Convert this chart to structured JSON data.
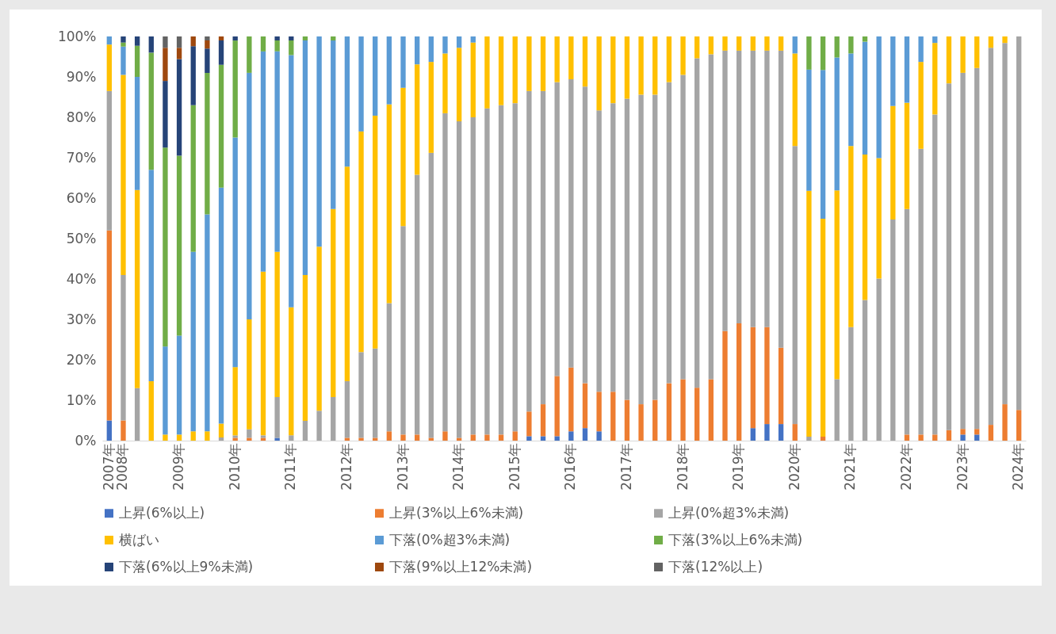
{
  "chart_data": {
    "type": "bar",
    "stacked": true,
    "legend": "bottom",
    "categories": [
      "2007年",
      "2008年",
      null,
      null,
      null,
      "2009年",
      null,
      null,
      null,
      "2010年",
      null,
      null,
      null,
      "2011年",
      null,
      null,
      null,
      "2012年",
      null,
      null,
      null,
      "2013年",
      null,
      null,
      null,
      "2014年",
      null,
      null,
      null,
      "2015年",
      null,
      null,
      null,
      "2016年",
      null,
      null,
      null,
      "2017年",
      null,
      null,
      null,
      "2018年",
      null,
      null,
      null,
      "2019年",
      null,
      null,
      null,
      "2020年",
      null,
      null,
      null,
      "2021年",
      null,
      null,
      null,
      "2022年",
      null,
      null,
      null,
      "2023年",
      null,
      null,
      null,
      "2024年"
    ],
    "ylim": [
      0,
      100
    ],
    "yticks": [
      {
        "value": 0,
        "label": "0%"
      },
      {
        "value": 10,
        "label": "10%"
      },
      {
        "value": 20,
        "label": "20%"
      },
      {
        "value": 30,
        "label": "30%"
      },
      {
        "value": 40,
        "label": "40%"
      },
      {
        "value": 50,
        "label": "50%"
      },
      {
        "value": 60,
        "label": "60%"
      },
      {
        "value": 70,
        "label": "70%"
      },
      {
        "value": 80,
        "label": "80%"
      },
      {
        "value": 90,
        "label": "90%"
      },
      {
        "value": 100,
        "label": "100%"
      }
    ],
    "series": [
      {
        "name": "上昇(6%以上)",
        "color": "#4472c4",
        "values": [
          5,
          null,
          null,
          null,
          null,
          null,
          null,
          null,
          null,
          null,
          null,
          null,
          0.7,
          null,
          null,
          null,
          null,
          null,
          null,
          null,
          null,
          null,
          null,
          null,
          null,
          null,
          null,
          null,
          null,
          null,
          1.1,
          1.1,
          1.1,
          2.3,
          3.1,
          2.3,
          null,
          null,
          null,
          null,
          null,
          null,
          null,
          null,
          null,
          null,
          3.1,
          4.1,
          4.1,
          null,
          null,
          null,
          null,
          null,
          null,
          null,
          null,
          null,
          null,
          null,
          null,
          1.5,
          1.5,
          null,
          null,
          null
        ]
      },
      {
        "name": "上昇(3%以上6%未満)",
        "color": "#ed7d31",
        "values": [
          47,
          5,
          null,
          null,
          null,
          null,
          null,
          null,
          null,
          0.7,
          0.7,
          0.7,
          null,
          null,
          null,
          null,
          null,
          0.7,
          0.7,
          0.7,
          2.3,
          1.5,
          1.5,
          0.7,
          2.3,
          0.7,
          1.5,
          1.5,
          1.5,
          2.3,
          6.1,
          7.9,
          14.9,
          15.8,
          11.1,
          9.8,
          12.1,
          10.1,
          9,
          10.1,
          14.2,
          15.2,
          13.1,
          15.2,
          27.1,
          29,
          25,
          24,
          18.9,
          4.1,
          null,
          1,
          null,
          null,
          null,
          null,
          null,
          1.5,
          1.5,
          1.5,
          2.6,
          1.4,
          1.4,
          3.9,
          9,
          7.6
        ]
      },
      {
        "name": "上昇(0%超3%未満)",
        "color": "#a5a5a5",
        "values": [
          34.5,
          36,
          13,
          null,
          null,
          null,
          null,
          null,
          0.8,
          0.6,
          2.1,
          0.6,
          10.1,
          1.3,
          4.9,
          7.4,
          10.8,
          14,
          21.2,
          22.1,
          31.7,
          51.6,
          64.3,
          70.5,
          78.7,
          78.3,
          78.5,
          80.7,
          81.5,
          81.2,
          79.3,
          77.5,
          72.7,
          71.3,
          73.4,
          69.6,
          71.4,
          74.5,
          76.6,
          75.5,
          74.5,
          75.3,
          81.5,
          80.4,
          69.4,
          67.5,
          68.4,
          68.4,
          73.5,
          68.8,
          1,
          null,
          15.2,
          28.1,
          34.8,
          40.1,
          54.7,
          55.8,
          70.7,
          79.2,
          85.8,
          88.1,
          89.3,
          93.3,
          89.4,
          92.4
        ]
      },
      {
        "name": "横ばい",
        "color": "#ffc000",
        "values": [
          11.5,
          49.5,
          49,
          14.7,
          1.5,
          1.5,
          2.3,
          2.3,
          3.4,
          16.9,
          27.2,
          40.5,
          35.9,
          31.7,
          36.1,
          40.6,
          46.5,
          53.1,
          54.6,
          57.6,
          49.2,
          34.2,
          27.3,
          22.5,
          14.8,
          18.2,
          18.5,
          17.8,
          17,
          16.5,
          13.5,
          13.5,
          11.3,
          10.6,
          12.4,
          18.3,
          16.5,
          15.4,
          14.4,
          14.4,
          11.3,
          9.5,
          5.4,
          4.4,
          3.5,
          3.5,
          3.5,
          3.5,
          3.5,
          22.9,
          60.8,
          53.9,
          46.7,
          44.8,
          36,
          29.8,
          28.1,
          26.3,
          21.5,
          17.7,
          11.6,
          9,
          7.8,
          2.8,
          1.6,
          null
        ]
      },
      {
        "name": "下落(0%超3%未満)",
        "color": "#5b9bd5",
        "values": [
          2,
          7,
          28,
          52.3,
          21.8,
          24.5,
          44.4,
          53.7,
          58.4,
          56.8,
          61,
          54.5,
          49.6,
          62.4,
          58,
          52,
          41.7,
          32.2,
          23.5,
          19.6,
          16.8,
          12.7,
          6.9,
          6.3,
          4.2,
          2.8,
          1.5,
          null,
          null,
          null,
          null,
          null,
          null,
          null,
          null,
          null,
          null,
          null,
          null,
          null,
          null,
          null,
          null,
          null,
          null,
          null,
          null,
          null,
          null,
          4.2,
          30,
          36.8,
          32.9,
          22.9,
          27.9,
          30.1,
          17.2,
          16.4,
          6.3,
          1.6,
          null,
          null,
          null,
          null,
          null,
          null
        ]
      },
      {
        "name": "下落(3%以上6%未満)",
        "color": "#70ad47",
        "values": [
          null,
          1,
          7.7,
          29,
          49.2,
          44.5,
          36.3,
          35,
          30.4,
          24,
          9,
          3.7,
          2.7,
          3.6,
          1,
          null,
          1,
          null,
          null,
          null,
          null,
          null,
          null,
          null,
          null,
          null,
          null,
          null,
          null,
          null,
          null,
          null,
          null,
          null,
          null,
          null,
          null,
          null,
          null,
          null,
          null,
          null,
          null,
          null,
          null,
          null,
          null,
          null,
          null,
          null,
          8.2,
          8.3,
          5.2,
          4.2,
          1.3,
          null,
          null,
          null,
          null,
          null,
          null,
          null,
          null,
          null,
          null,
          null
        ]
      },
      {
        "name": "下落(6%以上9%未満)",
        "color": "#264478",
        "values": [
          null,
          1.5,
          2.3,
          4,
          16.5,
          23.9,
          14.6,
          6,
          6,
          1,
          null,
          null,
          1,
          1,
          null,
          null,
          null,
          null,
          null,
          null,
          null,
          null,
          null,
          null,
          null,
          null,
          null,
          null,
          null,
          null,
          null,
          null,
          null,
          null,
          null,
          null,
          null,
          null,
          null,
          null,
          null,
          null,
          null,
          null,
          null,
          null,
          null,
          null,
          null,
          null,
          null,
          null,
          null,
          null,
          null,
          null,
          null,
          null,
          null,
          null,
          null,
          null,
          null,
          null,
          null,
          null
        ]
      },
      {
        "name": "下落(9%以上12%未満)",
        "color": "#9e480e",
        "values": [
          null,
          null,
          null,
          null,
          8.2,
          2.8,
          2.4,
          2,
          1,
          null,
          null,
          null,
          null,
          null,
          null,
          null,
          null,
          null,
          null,
          null,
          null,
          null,
          null,
          null,
          null,
          null,
          null,
          null,
          null,
          null,
          null,
          null,
          null,
          null,
          null,
          null,
          null,
          null,
          null,
          null,
          null,
          null,
          null,
          null,
          null,
          null,
          null,
          null,
          null,
          null,
          null,
          null,
          null,
          null,
          null,
          null,
          null,
          null,
          null,
          null,
          null,
          null,
          null,
          null,
          null,
          null
        ]
      },
      {
        "name": "下落(12%以上)",
        "color": "#636363",
        "values": [
          null,
          null,
          null,
          null,
          2.8,
          2.8,
          null,
          1,
          null,
          null,
          null,
          null,
          null,
          null,
          null,
          null,
          null,
          null,
          null,
          null,
          null,
          null,
          null,
          null,
          null,
          null,
          null,
          null,
          null,
          null,
          null,
          null,
          null,
          null,
          null,
          null,
          null,
          null,
          null,
          null,
          null,
          null,
          null,
          null,
          null,
          null,
          null,
          null,
          null,
          null,
          null,
          null,
          null,
          null,
          null,
          null,
          null,
          null,
          null,
          null,
          null,
          null,
          null,
          null,
          null,
          null
        ]
      }
    ]
  }
}
